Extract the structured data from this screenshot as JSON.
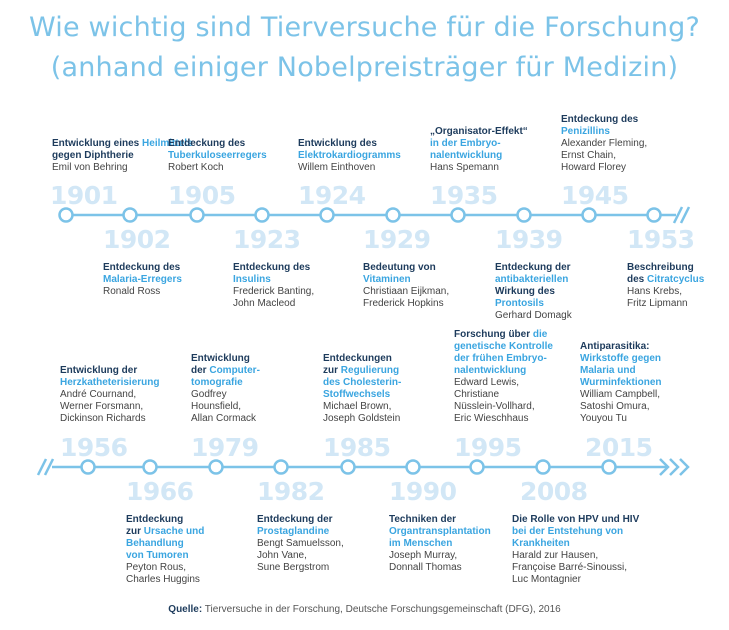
{
  "title": {
    "line1": "Wie wichtig sind Tierversuche für die Forschung?",
    "line2": "(anhand einiger Nobelpreisträger für Medizin)"
  },
  "colors": {
    "title": "#7cc3e8",
    "line": "#7cc3e8",
    "year": "#d2e7f6",
    "dark_text": "#1d3b5c",
    "accent_text": "#3aa5e0"
  },
  "timelines": [
    {
      "entries": [
        {
          "year": "1901",
          "side": "top",
          "discovery": [
            {
              "t": "Entwicklung ",
              "c": "dk"
            },
            {
              "t": "eines ",
              "c": "dk"
            },
            {
              "t": "Heilmittels",
              "c": "bl"
            },
            {
              "t": " gegen Diphtherie",
              "c": "dk"
            }
          ],
          "names": [
            "Emil von Behring"
          ]
        },
        {
          "year": "1902",
          "side": "bottom",
          "discovery": [
            {
              "t": "Entdeckung des",
              "c": "dk"
            },
            {
              "t": "Malaria-Erregers",
              "c": "bl"
            }
          ],
          "names": [
            "Ronald Ross"
          ]
        },
        {
          "year": "1905",
          "side": "top",
          "discovery": [
            {
              "t": "Entdeckung des",
              "c": "dk"
            },
            {
              "t": "Tuberkuloseerregers",
              "c": "bl"
            }
          ],
          "names": [
            "Robert Koch"
          ]
        },
        {
          "year": "1923",
          "side": "bottom",
          "discovery": [
            {
              "t": "Entdeckung des",
              "c": "dk"
            },
            {
              "t": "Insulins",
              "c": "bl"
            }
          ],
          "names": [
            "Frederick Banting,",
            "John Macleod"
          ]
        },
        {
          "year": "1924",
          "side": "top",
          "discovery": [
            {
              "t": "Entwicklung des",
              "c": "dk"
            },
            {
              "t": "Elektrokardiogramms",
              "c": "bl"
            }
          ],
          "names": [
            "Willem Einthoven"
          ]
        },
        {
          "year": "1929",
          "side": "bottom",
          "discovery": [
            {
              "t": "Bedeutung von",
              "c": "dk"
            },
            {
              "t": "Vitaminen",
              "c": "bl"
            }
          ],
          "names": [
            "Christiaan Eijkman,",
            "Frederick Hopkins"
          ]
        },
        {
          "year": "1935",
          "side": "top",
          "discovery": [
            {
              "t": "„Organisator-Effekt“",
              "c": "dk"
            },
            {
              "t": "in der Embryo-",
              "c": "bl"
            },
            {
              "t": "nalentwicklung",
              "c": "bl"
            }
          ],
          "names": [
            "Hans Spemann"
          ]
        },
        {
          "year": "1939",
          "side": "bottom",
          "discovery": [
            {
              "t": "Entdeckung der",
              "c": "dk"
            },
            {
              "t": "antibakteriellen",
              "c": "bl"
            },
            {
              "t": "Wirkung des",
              "c": "dk"
            },
            {
              "t": "Prontosils",
              "c": "bl"
            }
          ],
          "names": [
            "Gerhard Domagk"
          ]
        },
        {
          "year": "1945",
          "side": "top",
          "discovery": [
            {
              "t": "Entdeckung des",
              "c": "dk"
            },
            {
              "t": "Penizillins",
              "c": "bl"
            }
          ],
          "names": [
            "Alexander Fleming,",
            "Ernst Chain,",
            "Howard Florey"
          ]
        },
        {
          "year": "1953",
          "side": "bottom",
          "discovery": [
            {
              "t": "Beschreibung",
              "c": "dk"
            },
            {
              "t": "des ",
              "c": "dk"
            },
            {
              "t": "Citratcyclus",
              "c": "bl"
            }
          ],
          "names": [
            "Hans Krebs,",
            "Fritz Lipmann"
          ]
        }
      ]
    },
    {
      "entries": [
        {
          "year": "1956",
          "side": "top",
          "discovery": [
            {
              "t": "Entwicklung der",
              "c": "dk"
            },
            {
              "t": "Herzkatheterisierung",
              "c": "bl"
            }
          ],
          "names": [
            "André Cournand,",
            "Werner Forsmann,",
            "Dickinson Richards"
          ]
        },
        {
          "year": "1966",
          "side": "bottom",
          "discovery": [
            {
              "t": "Entdeckung",
              "c": "dk"
            },
            {
              "t": "zur ",
              "c": "dk"
            },
            {
              "t": "Ursache und",
              "c": "bl"
            },
            {
              "t": "Behandlung",
              "c": "bl"
            },
            {
              "t": "von Tumoren",
              "c": "bl"
            }
          ],
          "names": [
            "Peyton Rous,",
            "Charles Huggins"
          ]
        },
        {
          "year": "1979",
          "side": "top",
          "discovery": [
            {
              "t": "Entwicklung",
              "c": "dk"
            },
            {
              "t": "der ",
              "c": "dk"
            },
            {
              "t": "Computer-",
              "c": "bl"
            },
            {
              "t": "tomografie",
              "c": "bl"
            }
          ],
          "names": [
            "Godfrey",
            "Hounsfield,",
            "Allan Cormack"
          ]
        },
        {
          "year": "1982",
          "side": "bottom",
          "discovery": [
            {
              "t": "Entdeckung der",
              "c": "dk"
            },
            {
              "t": "Prostaglandine",
              "c": "bl"
            }
          ],
          "names": [
            "Bengt Samuelsson,",
            "John Vane,",
            "Sune Bergstrom"
          ]
        },
        {
          "year": "1985",
          "side": "top",
          "discovery": [
            {
              "t": "Entdeckungen",
              "c": "dk"
            },
            {
              "t": "zur ",
              "c": "dk"
            },
            {
              "t": "Regulierung",
              "c": "bl"
            },
            {
              "t": "des Cholesterin-",
              "c": "bl"
            },
            {
              "t": "Stoffwechsels",
              "c": "bl"
            }
          ],
          "names": [
            "Michael Brown,",
            "Joseph Goldstein"
          ]
        },
        {
          "year": "1990",
          "side": "bottom",
          "discovery": [
            {
              "t": "Techniken der",
              "c": "dk"
            },
            {
              "t": "Organtransplantation",
              "c": "bl"
            },
            {
              "t": "im Menschen",
              "c": "bl"
            }
          ],
          "names": [
            "Joseph Murray,",
            "Donnall Thomas"
          ]
        },
        {
          "year": "1995",
          "side": "top",
          "discovery": [
            {
              "t": "Forschung über ",
              "c": "dk"
            },
            {
              "t": "die",
              "c": "bl"
            },
            {
              "t": "genetische Kontrolle",
              "c": "bl"
            },
            {
              "t": "der frühen Embryo-",
              "c": "bl"
            },
            {
              "t": "nalentwicklung",
              "c": "bl"
            }
          ],
          "names": [
            "Edward Lewis,",
            "Christiane",
            "Nüsslein-Vollhard,",
            "Eric Wieschhaus"
          ]
        },
        {
          "year": "2008",
          "side": "bottom",
          "discovery": [
            {
              "t": "Die Rolle von HPV und HIV",
              "c": "dk"
            },
            {
              "t": "bei der Entstehung von",
              "c": "bl"
            },
            {
              "t": "Krankheiten",
              "c": "bl"
            }
          ],
          "names": [
            "Harald zur Hausen,",
            "Françoise Barré-Sinoussi,",
            "Luc Montagnier"
          ]
        },
        {
          "year": "2015",
          "side": "top",
          "discovery": [
            {
              "t": "Antiparasitika:",
              "c": "dk"
            },
            {
              "t": "Wirkstoffe gegen",
              "c": "bl"
            },
            {
              "t": "Malaria und",
              "c": "bl"
            },
            {
              "t": "Wurminfektionen",
              "c": "bl"
            }
          ],
          "names": [
            "William Campbell,",
            "Satoshi Omura,",
            "Youyou Tu"
          ]
        }
      ]
    }
  ],
  "source": {
    "label": "Quelle:",
    "text": " Tierversuche in der Forschung, Deutsche Forschungsgemeinschaft (DFG), 2016"
  }
}
